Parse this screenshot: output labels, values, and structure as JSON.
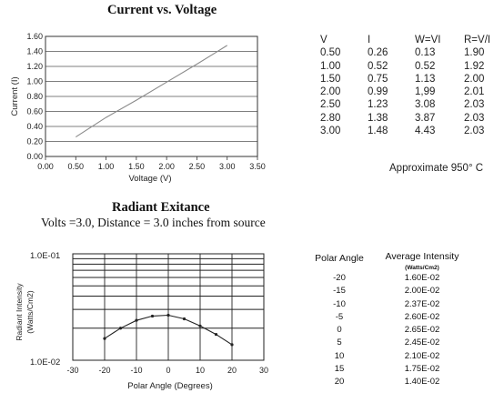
{
  "charts": {
    "iv": {
      "title": "Current vs. Voltage",
      "ylabel": "Current (I)",
      "xlabel": "Voltage (V)"
    },
    "radiant": {
      "title": "Radiant Exitance",
      "subtitle": "Volts =3.0, Distance = 3.0 inches from source",
      "ylabel_line1": "Radiant Intensity",
      "ylabel_line2": "(Watts/Cm2)",
      "xlabel": "Polar Angle (Degrees)",
      "ytick_top": "1.0E-01",
      "ytick_bottom": "1.0E-02"
    }
  },
  "chart_data": [
    {
      "type": "line",
      "title": "Current vs. Voltage",
      "xlabel": "Voltage (V)",
      "ylabel": "Current (I)",
      "xlim": [
        0,
        3.5
      ],
      "ylim": [
        0,
        1.6
      ],
      "xticks": [
        "0.00",
        "0.50",
        "1.00",
        "1.50",
        "2.00",
        "2.50",
        "3.00",
        "3.50"
      ],
      "yticks": [
        "0.00",
        "0.20",
        "0.40",
        "0.60",
        "0.80",
        "1.00",
        "1.20",
        "1.40",
        "1.60"
      ],
      "x": [
        0.5,
        1.0,
        1.5,
        2.0,
        2.5,
        2.8,
        3.0
      ],
      "y": [
        0.26,
        0.52,
        0.75,
        0.99,
        1.23,
        1.38,
        1.48
      ],
      "grid": true
    },
    {
      "type": "line",
      "title": "Radiant Exitance",
      "xlabel": "Polar Angle (Degrees)",
      "ylabel": "Radiant Intensity (Watts/Cm2)",
      "xlim": [
        -30,
        30
      ],
      "ylim": [
        0.01,
        0.1
      ],
      "yscale": "log",
      "xticks": [
        "-30",
        "-20",
        "-10",
        "0",
        "10",
        "20",
        "30"
      ],
      "x": [
        -20,
        -15,
        -10,
        -5,
        0,
        5,
        10,
        15,
        20
      ],
      "y": [
        0.016,
        0.02,
        0.0237,
        0.026,
        0.0265,
        0.0245,
        0.021,
        0.0175,
        0.014
      ],
      "grid": true
    }
  ],
  "iv_table": {
    "headers": [
      "V",
      "I",
      "W=VI",
      "R=V/I"
    ],
    "rows": [
      [
        "0.50",
        "0.26",
        "0.13",
        "1.90"
      ],
      [
        "1.00",
        "0.52",
        "0.52",
        "1.92"
      ],
      [
        "1.50",
        "0.75",
        "1.13",
        "2.00"
      ],
      [
        "2.00",
        "0.99",
        "1,99",
        "2.01"
      ],
      [
        "2.50",
        "1.23",
        "3.08",
        "2.03"
      ],
      [
        "2.80",
        "1.38",
        "3.87",
        "2.03"
      ],
      [
        "3.00",
        "1.48",
        "4.43",
        "2.03"
      ]
    ],
    "note": "Approximate 950° C"
  },
  "radiant_table": {
    "header_angle": "Polar Angle",
    "header_intensity": "Average Intensity",
    "header_units": "(Watts/Cm2)",
    "rows": [
      [
        "-20",
        "1.60E-02"
      ],
      [
        "-15",
        "2.00E-02"
      ],
      [
        "-10",
        "2.37E-02"
      ],
      [
        "-5",
        "2.60E-02"
      ],
      [
        "0",
        "2.65E-02"
      ],
      [
        "5",
        "2.45E-02"
      ],
      [
        "10",
        "2.10E-02"
      ],
      [
        "15",
        "1.75E-02"
      ],
      [
        "20",
        "1.40E-02"
      ]
    ]
  }
}
